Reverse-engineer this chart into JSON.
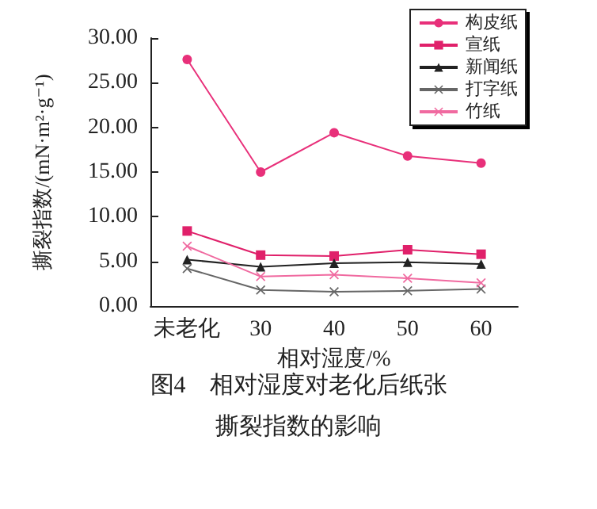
{
  "chart_data": {
    "type": "line",
    "ylabel": "撕裂指数/(mN·m²·g⁻¹)",
    "xlabel": "相对湿度/%",
    "categories": [
      "未老化",
      "30",
      "40",
      "50",
      "60"
    ],
    "ylim": [
      0,
      30
    ],
    "yticks": [
      {
        "value": 0,
        "label": "0.00"
      },
      {
        "value": 5,
        "label": "5.00"
      },
      {
        "value": 10,
        "label": "10.00"
      },
      {
        "value": 15,
        "label": "15.00"
      },
      {
        "value": 20,
        "label": "20.00"
      },
      {
        "value": 25,
        "label": "25.00"
      },
      {
        "value": 30,
        "label": "30.00"
      }
    ],
    "grid": false,
    "legend": "top right",
    "line_style": "solid",
    "series": [
      {
        "name": "构皮纸",
        "color": "#e8307a",
        "marker": "circle",
        "values": [
          27.6,
          15.0,
          19.4,
          16.8,
          16.0
        ]
      },
      {
        "name": "宣纸",
        "color": "#e0206a",
        "marker": "square",
        "values": [
          8.4,
          5.7,
          5.6,
          6.3,
          5.8
        ]
      },
      {
        "name": "新闻纸",
        "color": "#222222",
        "marker": "triangle",
        "values": [
          5.2,
          4.4,
          4.8,
          4.9,
          4.7
        ]
      },
      {
        "name": "打字纸",
        "color": "#666666",
        "marker": "cross",
        "values": [
          4.2,
          1.8,
          1.6,
          1.7,
          1.9
        ]
      },
      {
        "name": "竹纸",
        "color": "#f06aa0",
        "marker": "cross",
        "values": [
          6.7,
          3.3,
          3.5,
          3.1,
          2.6
        ]
      }
    ],
    "annotations": [
      "图4　相对湿度对老化后纸张",
      "撕裂指数的影响"
    ]
  }
}
